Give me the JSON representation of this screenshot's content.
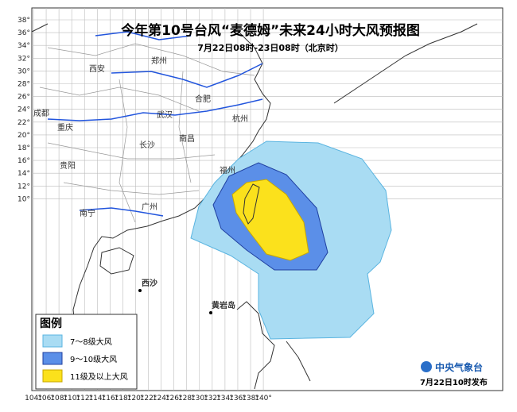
{
  "header": {
    "title": "今年第10号台风“麦德姆”未来24小时大风预报图",
    "subtitle": "7月22日08时-23日08时（北京时）"
  },
  "lon_labels": [
    "104°",
    "106°",
    "108°",
    "110°",
    "112°",
    "114°",
    "116°",
    "118°",
    "120°",
    "122°",
    "124°",
    "126°",
    "128°",
    "130°",
    "132°",
    "134°",
    "136°",
    "138°",
    "140°"
  ],
  "lat_labels": [
    "38°",
    "36°",
    "34°",
    "32°",
    "30°",
    "28°",
    "26°",
    "24°",
    "22°",
    "20°",
    "18°",
    "16°",
    "14°",
    "12°",
    "10°"
  ],
  "places": [
    "西安",
    "郑州",
    "合肥",
    "成都",
    "武汉",
    "重庆",
    "长沙",
    "南昌",
    "杭州",
    "福州",
    "贵阳",
    "南宁",
    "广州",
    "西沙",
    "黄岩岛"
  ],
  "legend": {
    "title": "图例",
    "items": [
      "7～8级大风",
      "9～10级大风",
      "11级及以上大风"
    ]
  },
  "footer": {
    "agency": "中央气象台",
    "issued": "7月22日10时发布"
  }
}
